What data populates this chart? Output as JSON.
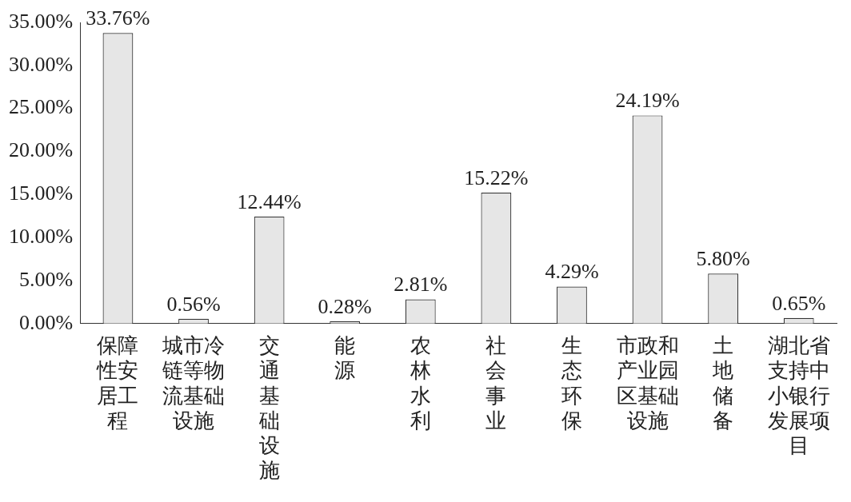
{
  "chart_data": {
    "type": "bar",
    "categories": [
      "保障性安居工程",
      "城市冷链等物流基础设施",
      "交通基础设施",
      "能源",
      "农林水利",
      "社会事业",
      "生态环保",
      "市政和产业园区基础设施",
      "土地储备",
      "湖北省支持中小银行发展项目"
    ],
    "values": [
      33.76,
      0.56,
      12.44,
      0.28,
      2.81,
      15.22,
      4.29,
      24.19,
      5.8,
      0.65
    ],
    "value_labels": [
      "33.76%",
      "0.56%",
      "12.44%",
      "0.28%",
      "2.81%",
      "15.22%",
      "4.29%",
      "24.19%",
      "5.80%",
      "0.65%"
    ],
    "color": "#e6e6e6",
    "ylim": [
      0,
      35
    ],
    "yticks": [
      {
        "value": 0,
        "label": "0.00%"
      },
      {
        "value": 5,
        "label": "5.00%"
      },
      {
        "value": 10,
        "label": "10.00%"
      },
      {
        "value": 15,
        "label": "15.00%"
      },
      {
        "value": 20,
        "label": "20.00%"
      },
      {
        "value": 25,
        "label": "25.00%"
      },
      {
        "value": 30,
        "label": "30.00%"
      },
      {
        "value": 35,
        "label": "35.00%"
      }
    ],
    "grid": false,
    "legend": false
  }
}
